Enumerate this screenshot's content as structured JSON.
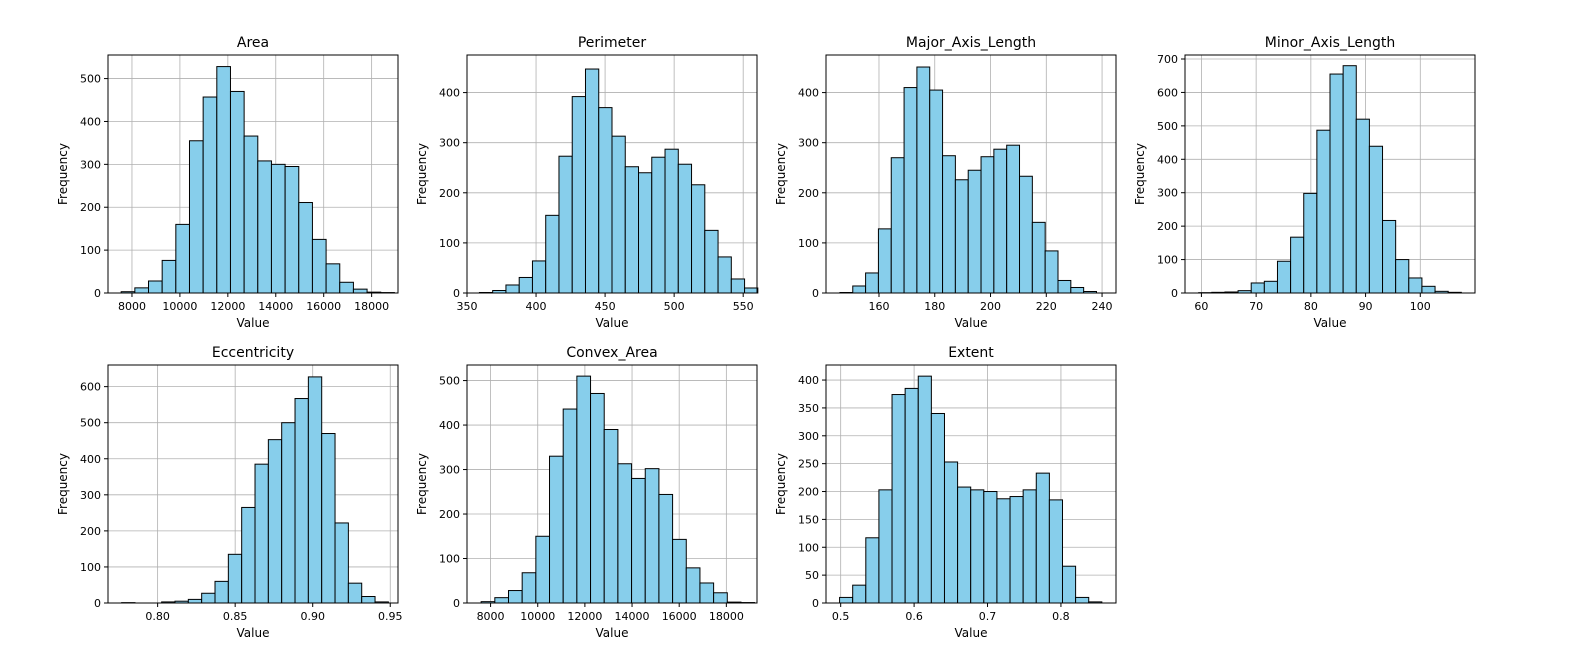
{
  "chart_data": [
    {
      "type": "bar",
      "title": "Area",
      "xlabel": "Value",
      "ylabel": "Frequency",
      "bin_start": 7550,
      "bin_width": 570,
      "values": [
        3,
        12,
        28,
        76,
        160,
        355,
        457,
        528,
        470,
        366,
        308,
        300,
        295,
        211,
        125,
        68,
        25,
        9,
        2,
        1
      ],
      "xlim": [
        7000,
        19100
      ],
      "ylim": [
        0,
        555
      ],
      "xticks": [
        8000,
        10000,
        12000,
        14000,
        16000,
        18000
      ],
      "yticks": [
        0,
        100,
        200,
        300,
        400,
        500
      ],
      "grid": true
    },
    {
      "type": "bar",
      "title": "Perimeter",
      "xlabel": "Value",
      "ylabel": "Frequency",
      "bin_start": 359,
      "bin_width": 9.6,
      "values": [
        1,
        5,
        16,
        31,
        64,
        155,
        273,
        392,
        447,
        370,
        313,
        252,
        240,
        271,
        287,
        257,
        216,
        125,
        72,
        28,
        10
      ],
      "xlim": [
        350,
        560
      ],
      "ylim": [
        0,
        475
      ],
      "xticks": [
        350,
        400,
        450,
        500,
        550
      ],
      "yticks": [
        0,
        100,
        200,
        300,
        400
      ],
      "grid": true
    },
    {
      "type": "bar",
      "title": "Major_Axis_Length",
      "xlabel": "Value",
      "ylabel": "Frequency",
      "bin_start": 146,
      "bin_width": 4.6,
      "values": [
        1,
        14,
        40,
        128,
        270,
        410,
        451,
        405,
        274,
        226,
        245,
        272,
        287,
        295,
        233,
        141,
        84,
        25,
        11,
        3
      ],
      "xlim": [
        141,
        245
      ],
      "ylim": [
        0,
        475
      ],
      "xticks": [
        160,
        180,
        200,
        220,
        240
      ],
      "yticks": [
        0,
        100,
        200,
        300,
        400
      ],
      "grid": true
    },
    {
      "type": "bar",
      "title": "Minor_Axis_Length",
      "xlabel": "Value",
      "ylabel": "Frequency",
      "bin_start": 59.5,
      "bin_width": 2.4,
      "values": [
        1,
        2,
        3,
        7,
        30,
        35,
        95,
        167,
        298,
        487,
        655,
        680,
        520,
        439,
        217,
        100,
        45,
        20,
        5,
        2
      ],
      "xlim": [
        57,
        110
      ],
      "ylim": [
        0,
        712
      ],
      "xticks": [
        60,
        70,
        80,
        90,
        100
      ],
      "yticks": [
        0,
        100,
        200,
        300,
        400,
        500,
        600,
        700
      ],
      "grid": true
    },
    {
      "type": "bar",
      "title": "Eccentricity",
      "xlabel": "Value",
      "ylabel": "Frequency",
      "bin_start": 0.7768,
      "bin_width": 0.0086,
      "values": [
        1,
        0,
        0,
        3,
        5,
        10,
        27,
        60,
        135,
        265,
        385,
        453,
        500,
        567,
        627,
        470,
        222,
        55,
        18,
        3
      ],
      "xlim": [
        0.768,
        0.955
      ],
      "ylim": [
        0,
        660
      ],
      "xticks": [
        0.8,
        0.85,
        0.9,
        0.95
      ],
      "xtick_labels": [
        "0.80",
        "0.85",
        "0.90",
        "0.95"
      ],
      "yticks": [
        0,
        100,
        200,
        300,
        400,
        500,
        600
      ],
      "grid": true
    },
    {
      "type": "bar",
      "title": "Convex_Area",
      "xlabel": "Value",
      "ylabel": "Frequency",
      "bin_start": 7600,
      "bin_width": 580,
      "values": [
        3,
        12,
        28,
        68,
        150,
        330,
        436,
        510,
        471,
        390,
        313,
        280,
        302,
        244,
        143,
        79,
        45,
        23,
        2,
        1
      ],
      "xlim": [
        7000,
        19300
      ],
      "ylim": [
        0,
        535
      ],
      "xticks": [
        8000,
        10000,
        12000,
        14000,
        16000,
        18000
      ],
      "yticks": [
        0,
        100,
        200,
        300,
        400,
        500
      ],
      "grid": true
    },
    {
      "type": "bar",
      "title": "Extent",
      "xlabel": "Value",
      "ylabel": "Frequency",
      "bin_start": 0.4985,
      "bin_width": 0.01786,
      "values": [
        10,
        32,
        117,
        203,
        374,
        385,
        407,
        340,
        253,
        208,
        203,
        200,
        187,
        191,
        203,
        233,
        185,
        66,
        10,
        2
      ],
      "xlim": [
        0.48,
        0.875
      ],
      "ylim": [
        0,
        427
      ],
      "xticks": [
        0.5,
        0.6,
        0.7,
        0.8
      ],
      "xtick_labels": [
        "0.5",
        "0.6",
        "0.7",
        "0.8"
      ],
      "yticks": [
        0,
        50,
        100,
        150,
        200,
        250,
        300,
        350,
        400
      ],
      "grid": true
    }
  ],
  "colors": {
    "bar_fill": "#87ceeb",
    "bar_edge": "#000000",
    "grid": "#b0b0b0"
  }
}
